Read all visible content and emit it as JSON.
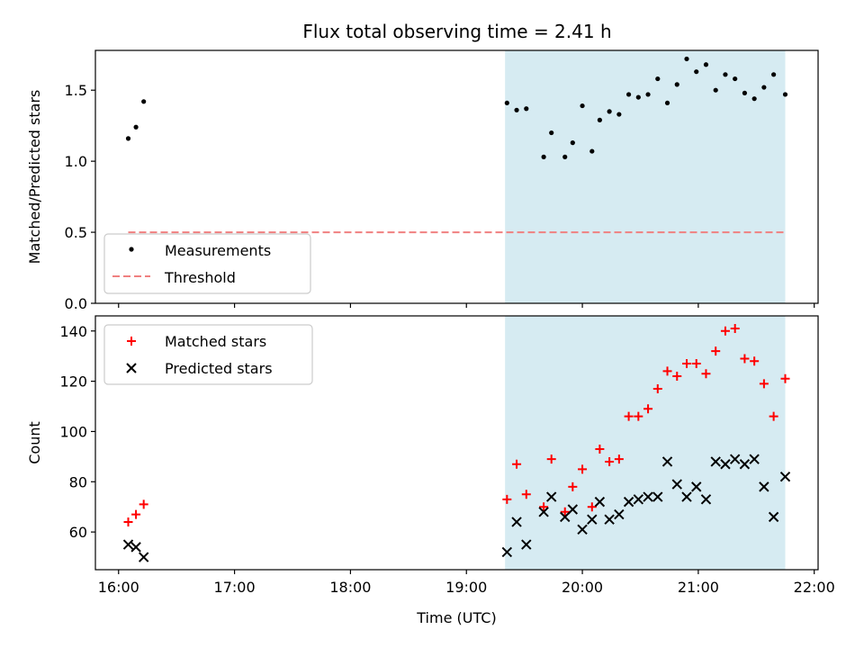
{
  "title": "Flux total observing time = 2.41 h",
  "colors": {
    "measurement": "#000000",
    "threshold": "#f08080",
    "matched": "#ff0000",
    "predicted": "#000000",
    "span_fill": "#add8e6"
  },
  "chart_data": [
    {
      "type": "scatter",
      "panel": "top",
      "ylabel": "Matched/Predicted stars",
      "xlabel": "",
      "xlim": [
        "15:48",
        "22:02"
      ],
      "ylim": [
        0.0,
        1.78
      ],
      "yticks": [
        0.0,
        0.5,
        1.0,
        1.5
      ],
      "ytick_labels": [
        "0.0",
        "0.5",
        "1.0",
        "1.5"
      ],
      "xticks": [
        "16:00",
        "17:00",
        "18:00",
        "19:00",
        "20:00",
        "21:00",
        "22:00"
      ],
      "xtick_labels": [],
      "grid": false,
      "legend_position": "lower-left",
      "shaded_span": {
        "start": "19:20",
        "end": "21:45"
      },
      "series": [
        {
          "name": "Measurements",
          "marker": "dot",
          "points": [
            [
              "16:05",
              1.16
            ],
            [
              "16:09",
              1.24
            ],
            [
              "16:13",
              1.42
            ],
            [
              "19:21",
              1.41
            ],
            [
              "19:26",
              1.36
            ],
            [
              "19:31",
              1.37
            ],
            [
              "19:40",
              1.03
            ],
            [
              "19:44",
              1.2
            ],
            [
              "19:51",
              1.03
            ],
            [
              "19:55",
              1.13
            ],
            [
              "20:00",
              1.39
            ],
            [
              "20:05",
              1.07
            ],
            [
              "20:09",
              1.29
            ],
            [
              "20:14",
              1.35
            ],
            [
              "20:19",
              1.33
            ],
            [
              "20:24",
              1.47
            ],
            [
              "20:29",
              1.45
            ],
            [
              "20:34",
              1.47
            ],
            [
              "20:39",
              1.58
            ],
            [
              "20:44",
              1.41
            ],
            [
              "20:49",
              1.54
            ],
            [
              "20:54",
              1.72
            ],
            [
              "20:59",
              1.63
            ],
            [
              "21:04",
              1.68
            ],
            [
              "21:09",
              1.5
            ],
            [
              "21:14",
              1.61
            ],
            [
              "21:19",
              1.58
            ],
            [
              "21:24",
              1.48
            ],
            [
              "21:29",
              1.44
            ],
            [
              "21:34",
              1.52
            ],
            [
              "21:39",
              1.61
            ],
            [
              "21:45",
              1.47
            ]
          ]
        },
        {
          "name": "Threshold",
          "marker": "dashed-line",
          "points": [
            [
              "16:05",
              0.5
            ],
            [
              "21:45",
              0.5
            ]
          ]
        }
      ]
    },
    {
      "type": "scatter",
      "panel": "bottom",
      "ylabel": "Count",
      "xlabel": "Time (UTC)",
      "xlim": [
        "15:48",
        "22:02"
      ],
      "ylim": [
        45,
        146
      ],
      "yticks": [
        60,
        80,
        100,
        120,
        140
      ],
      "ytick_labels": [
        "60",
        "80",
        "100",
        "120",
        "140"
      ],
      "xticks": [
        "16:00",
        "17:00",
        "18:00",
        "19:00",
        "20:00",
        "21:00",
        "22:00"
      ],
      "xtick_labels": [
        "16:00",
        "17:00",
        "18:00",
        "19:00",
        "20:00",
        "21:00",
        "22:00"
      ],
      "grid": false,
      "legend_position": "upper-left",
      "shaded_span": {
        "start": "19:20",
        "end": "21:45"
      },
      "series": [
        {
          "name": "Matched stars",
          "marker": "plus",
          "points": [
            [
              "16:05",
              64
            ],
            [
              "16:09",
              67
            ],
            [
              "16:13",
              71
            ],
            [
              "19:21",
              73
            ],
            [
              "19:26",
              87
            ],
            [
              "19:31",
              75
            ],
            [
              "19:40",
              70
            ],
            [
              "19:44",
              89
            ],
            [
              "19:51",
              68
            ],
            [
              "19:55",
              78
            ],
            [
              "20:00",
              85
            ],
            [
              "20:05",
              70
            ],
            [
              "20:09",
              93
            ],
            [
              "20:14",
              88
            ],
            [
              "20:19",
              89
            ],
            [
              "20:24",
              106
            ],
            [
              "20:29",
              106
            ],
            [
              "20:34",
              109
            ],
            [
              "20:39",
              117
            ],
            [
              "20:44",
              124
            ],
            [
              "20:49",
              122
            ],
            [
              "20:54",
              127
            ],
            [
              "20:59",
              127
            ],
            [
              "21:04",
              123
            ],
            [
              "21:09",
              132
            ],
            [
              "21:14",
              140
            ],
            [
              "21:19",
              141
            ],
            [
              "21:24",
              129
            ],
            [
              "21:29",
              128
            ],
            [
              "21:34",
              119
            ],
            [
              "21:39",
              106
            ],
            [
              "21:45",
              121
            ]
          ]
        },
        {
          "name": "Predicted stars",
          "marker": "x",
          "points": [
            [
              "16:05",
              55
            ],
            [
              "16:09",
              54
            ],
            [
              "16:13",
              50
            ],
            [
              "19:21",
              52
            ],
            [
              "19:26",
              64
            ],
            [
              "19:31",
              55
            ],
            [
              "19:40",
              68
            ],
            [
              "19:44",
              74
            ],
            [
              "19:51",
              66
            ],
            [
              "19:55",
              69
            ],
            [
              "20:00",
              61
            ],
            [
              "20:05",
              65
            ],
            [
              "20:09",
              72
            ],
            [
              "20:14",
              65
            ],
            [
              "20:19",
              67
            ],
            [
              "20:24",
              72
            ],
            [
              "20:29",
              73
            ],
            [
              "20:34",
              74
            ],
            [
              "20:39",
              74
            ],
            [
              "20:44",
              88
            ],
            [
              "20:49",
              79
            ],
            [
              "20:54",
              74
            ],
            [
              "20:59",
              78
            ],
            [
              "21:04",
              73
            ],
            [
              "21:09",
              88
            ],
            [
              "21:14",
              87
            ],
            [
              "21:19",
              89
            ],
            [
              "21:24",
              87
            ],
            [
              "21:29",
              89
            ],
            [
              "21:34",
              78
            ],
            [
              "21:39",
              66
            ],
            [
              "21:45",
              82
            ]
          ]
        }
      ]
    }
  ]
}
